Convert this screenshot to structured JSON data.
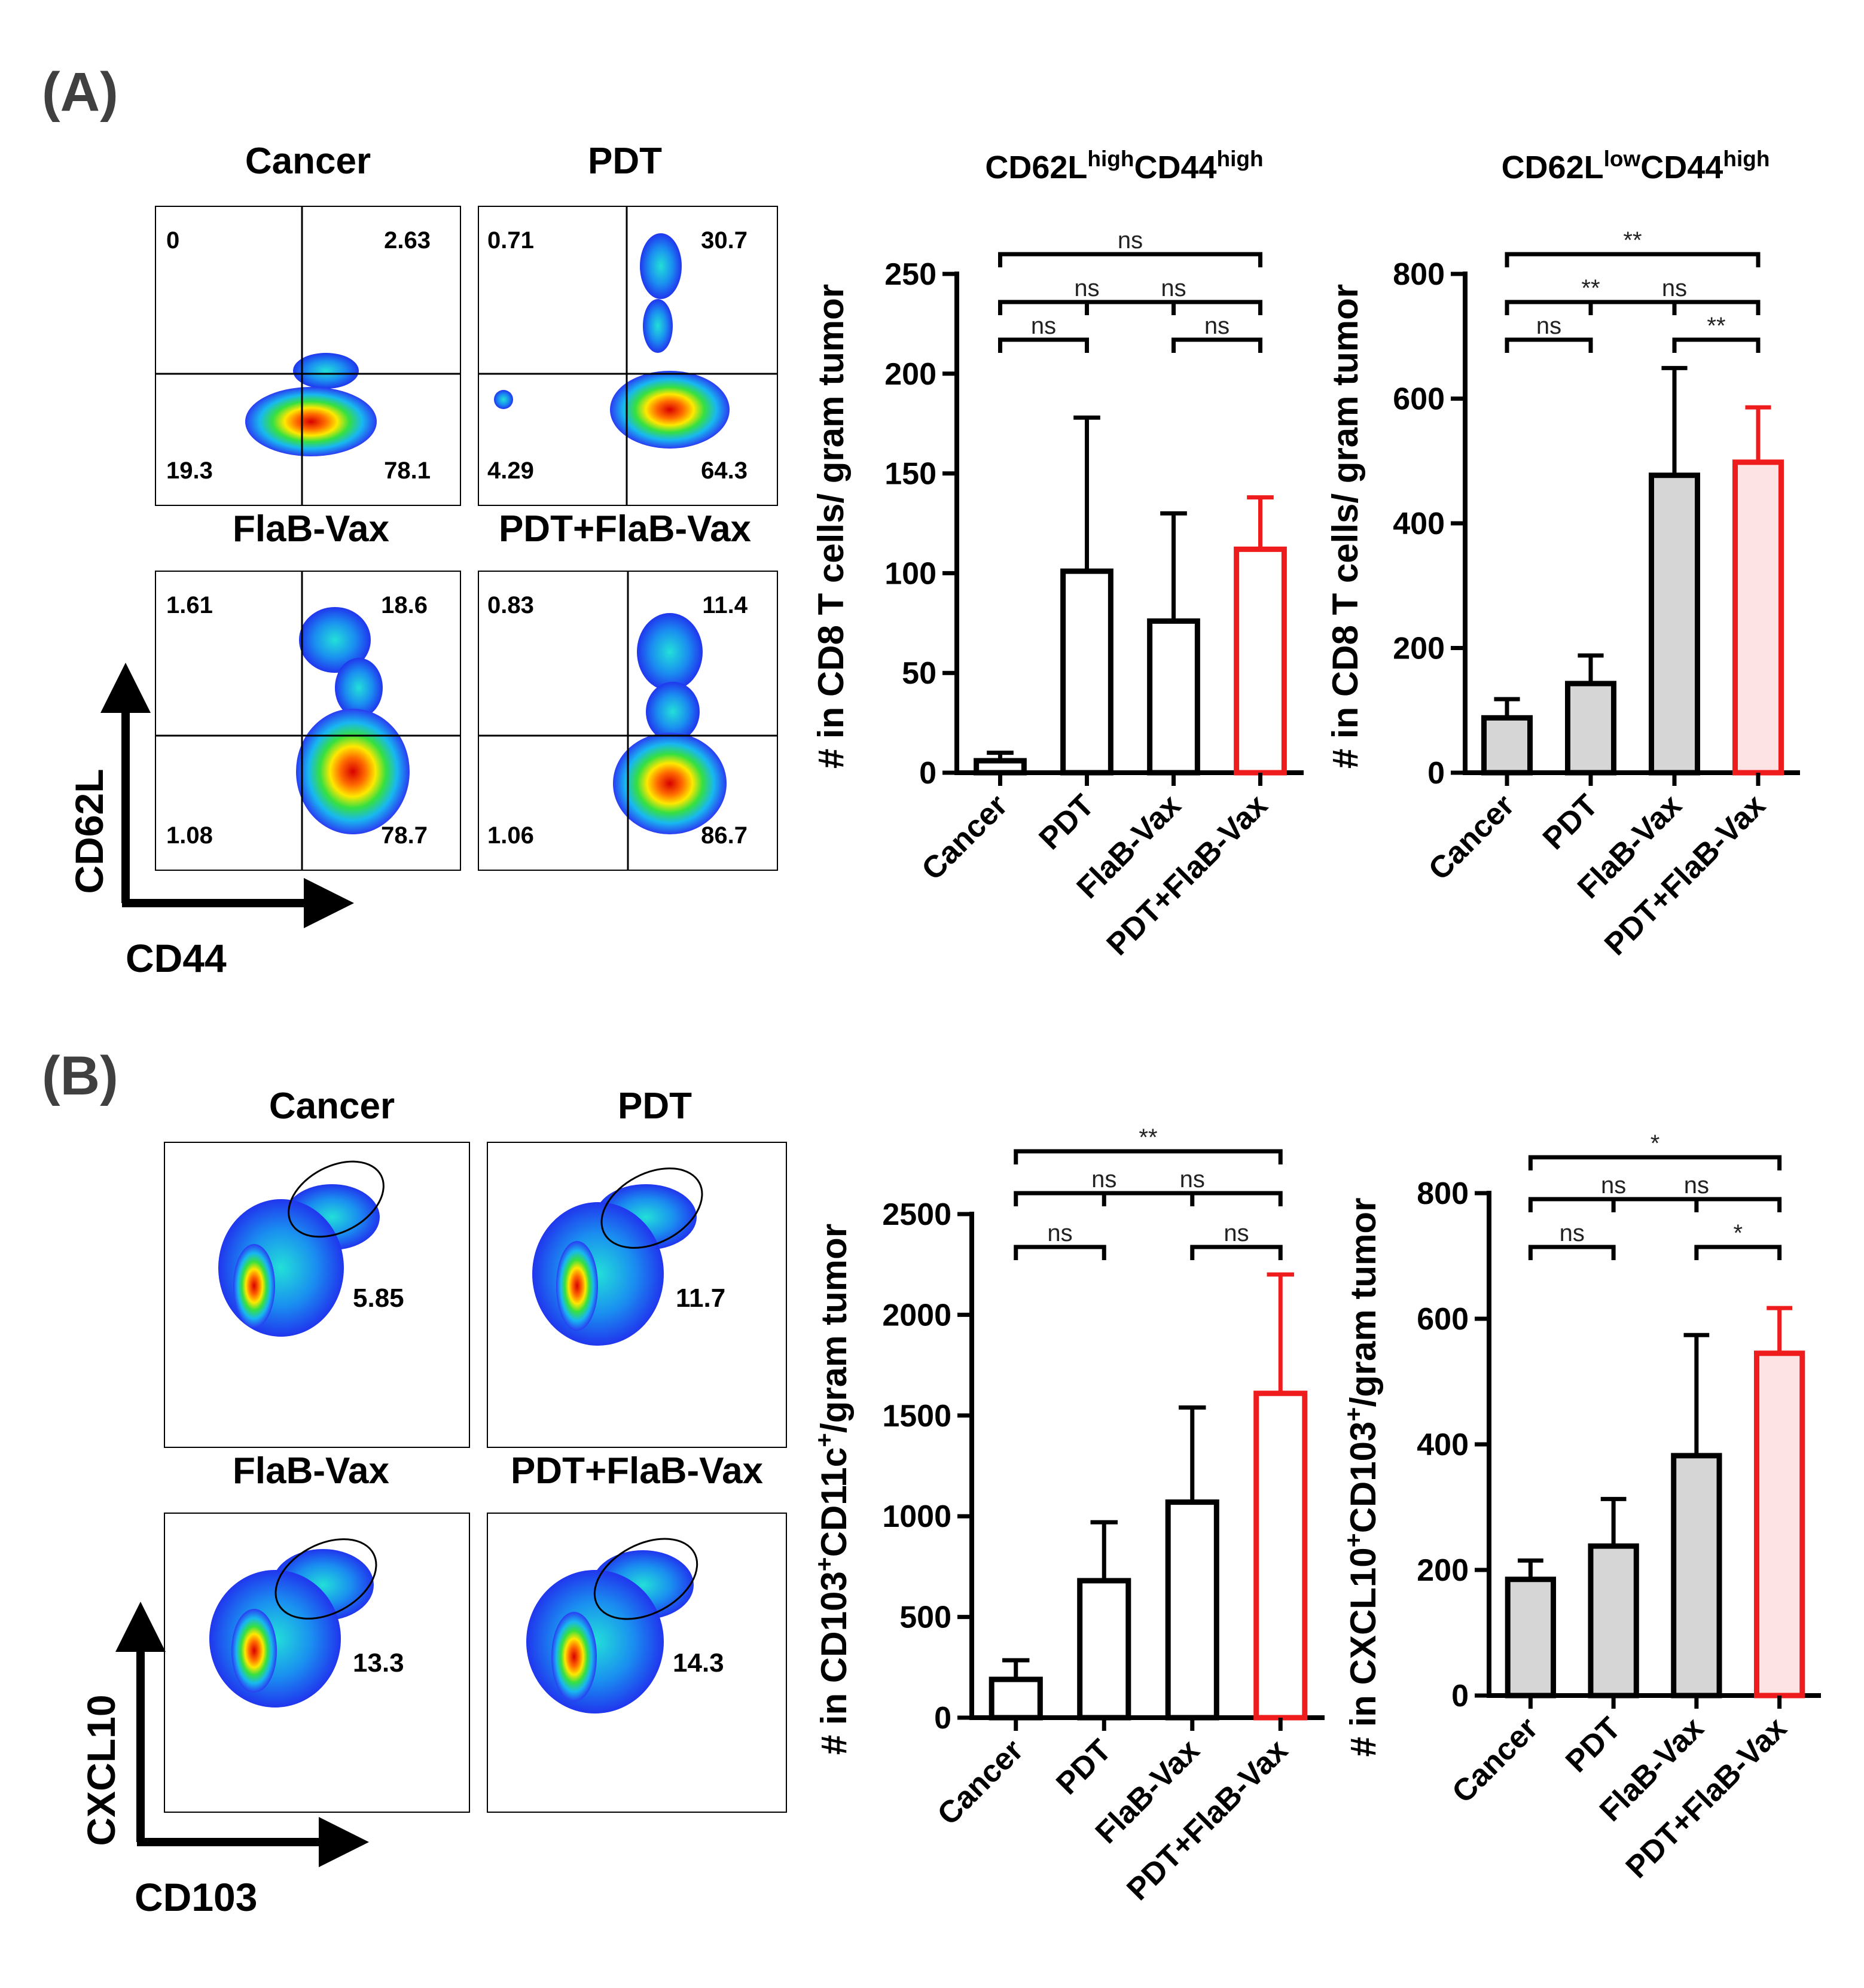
{
  "panels": [
    {
      "label": "(A)"
    },
    {
      "label": "(B)"
    }
  ],
  "flow_plots": {
    "A": {
      "x_axis": "CD44",
      "y_axis": "CD62L",
      "plots": [
        {
          "title": "Cancer",
          "q_ul": "0",
          "q_ur": "2.63",
          "q_ll": "19.3",
          "q_lr": "78.1"
        },
        {
          "title": "PDT",
          "q_ul": "0.71",
          "q_ur": "30.7",
          "q_ll": "4.29",
          "q_lr": "64.3"
        },
        {
          "title": "FlaB-Vax",
          "q_ul": "1.61",
          "q_ur": "18.6",
          "q_ll": "1.08",
          "q_lr": "78.7"
        },
        {
          "title": "PDT+FlaB-Vax",
          "q_ul": "0.83",
          "q_ur": "11.4",
          "q_ll": "1.06",
          "q_lr": "86.7"
        }
      ]
    },
    "B": {
      "x_axis": "CD103",
      "y_axis": "CXCL10",
      "plots": [
        {
          "title": "Cancer",
          "gate": "5.85"
        },
        {
          "title": "PDT",
          "gate": "11.7"
        },
        {
          "title": "FlaB-Vax",
          "gate": "13.3"
        },
        {
          "title": "PDT+FlaB-Vax",
          "gate": "14.3"
        }
      ]
    }
  },
  "colors": {
    "black": "#000000",
    "red": "#ee1c1c",
    "gray_fill": "#d6d6d6",
    "pink_fill": "#fde3e3",
    "white_fill": "#ffffff"
  },
  "chart_data": [
    {
      "type": "bar",
      "title": "CD62L^highCD44^high",
      "ylabel": "# in CD8 T cells/ gram tumor",
      "categories": [
        "Cancer",
        "PDT",
        "FlaB-Vax",
        "PDT+FlaB-Vax"
      ],
      "values": [
        6,
        101,
        76,
        112
      ],
      "errors": [
        4,
        77,
        54,
        26
      ],
      "ylim": [
        0,
        250
      ],
      "yticks": [
        "0",
        "50",
        "100",
        "150",
        "200",
        "250"
      ],
      "fill": "white",
      "significance": [
        {
          "label": "ns",
          "level": 1,
          "from": 0,
          "to": 1
        },
        {
          "label": "ns",
          "level": 1,
          "from": 2,
          "to": 3
        },
        {
          "label": "ns",
          "level": 2,
          "from": 0,
          "to": 2
        },
        {
          "label": "ns",
          "level": 2,
          "from": 1,
          "to": 3
        },
        {
          "label": "ns",
          "level": 3,
          "from": 0,
          "to": 3
        }
      ]
    },
    {
      "type": "bar",
      "title": "CD62L^lowCD44^high",
      "ylabel": "# in CD8 T cells/ gram tumor",
      "categories": [
        "Cancer",
        "PDT",
        "FlaB-Vax",
        "PDT+FlaB-Vax"
      ],
      "values": [
        88,
        143,
        477,
        498
      ],
      "errors": [
        30,
        45,
        172,
        88
      ],
      "ylim": [
        0,
        800
      ],
      "yticks": [
        "0",
        "200",
        "400",
        "600",
        "800"
      ],
      "fill": "gray",
      "significance": [
        {
          "label": "ns",
          "level": 1,
          "from": 0,
          "to": 1
        },
        {
          "label": "**",
          "level": 1,
          "from": 2,
          "to": 3
        },
        {
          "label": "**",
          "level": 2,
          "from": 0,
          "to": 2
        },
        {
          "label": "ns",
          "level": 2,
          "from": 1,
          "to": 3
        },
        {
          "label": "**",
          "level": 3,
          "from": 0,
          "to": 3
        }
      ]
    },
    {
      "type": "bar",
      "title": "",
      "ylabel": "# in CD103^+CD11c^+/gram tumor",
      "categories": [
        "Cancer",
        "PDT",
        "FlaB-Vax",
        "PDT+FlaB-Vax"
      ],
      "values": [
        190,
        680,
        1070,
        1610
      ],
      "errors": [
        95,
        290,
        470,
        590
      ],
      "ylim": [
        0,
        2500
      ],
      "yticks": [
        "0",
        "500",
        "1000",
        "1500",
        "2000",
        "2500"
      ],
      "fill": "white",
      "significance": [
        {
          "label": "ns",
          "level": 1,
          "from": 0,
          "to": 1
        },
        {
          "label": "ns",
          "level": 1,
          "from": 2,
          "to": 3
        },
        {
          "label": "ns",
          "level": 2,
          "from": 0,
          "to": 2
        },
        {
          "label": "ns",
          "level": 2,
          "from": 1,
          "to": 3
        },
        {
          "label": "**",
          "level": 3,
          "from": 0,
          "to": 3
        }
      ]
    },
    {
      "type": "bar",
      "title": "",
      "ylabel": "# in CXCL10^+CD103^+/gram tumor",
      "categories": [
        "Cancer",
        "PDT",
        "FlaB-Vax",
        "PDT+FlaB-Vax"
      ],
      "values": [
        185,
        238,
        382,
        545
      ],
      "errors": [
        30,
        75,
        192,
        72
      ],
      "ylim": [
        0,
        800
      ],
      "yticks": [
        "0",
        "200",
        "400",
        "600",
        "800"
      ],
      "fill": "gray",
      "significance": [
        {
          "label": "ns",
          "level": 1,
          "from": 0,
          "to": 1
        },
        {
          "label": "*",
          "level": 1,
          "from": 2,
          "to": 3
        },
        {
          "label": "ns",
          "level": 2,
          "from": 0,
          "to": 2
        },
        {
          "label": "ns",
          "level": 2,
          "from": 1,
          "to": 3
        },
        {
          "label": "*",
          "level": 3,
          "from": 0,
          "to": 3
        }
      ]
    }
  ]
}
